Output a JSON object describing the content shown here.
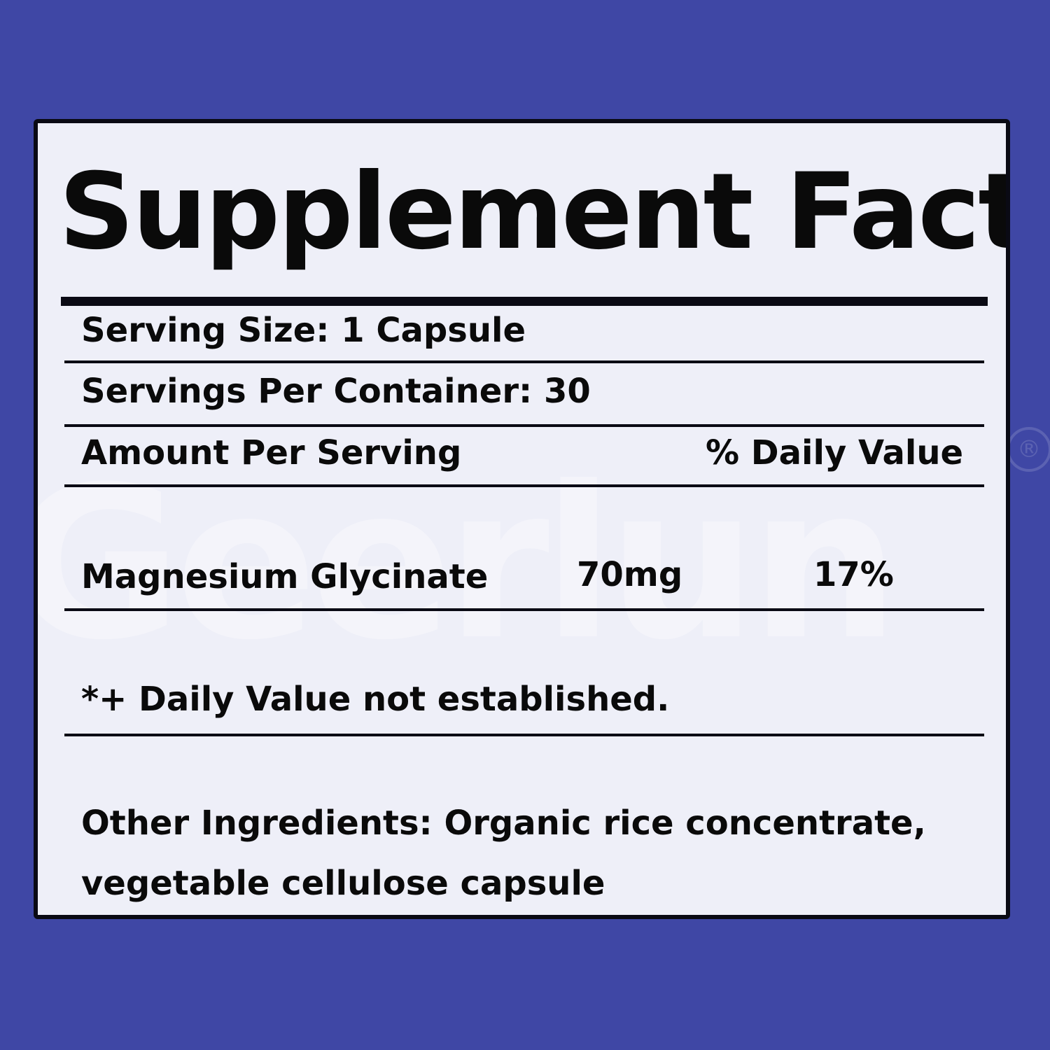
{
  "title": "Supplement Facts",
  "serving_size": "Serving Size: 1 Capsule",
  "servings_per_container": "Servings Per Container: 30",
  "amount_header": "Amount Per Serving",
  "dv_header": "% Daily Value",
  "ingredients": [
    {
      "name": "Magnesium Glycinate",
      "amount": "70mg",
      "daily_value": "17%"
    }
  ],
  "footnote": "*+ Daily Value not established.",
  "other_ingredients_line1": "Other Ingredients: Organic rice concentrate,",
  "other_ingredients_line2": "vegetable cellulose capsule",
  "watermark": "Geerlun",
  "colors": {
    "background": "#3f47a5",
    "panel": "#eeeff8",
    "text": "#0a0a0a"
  }
}
